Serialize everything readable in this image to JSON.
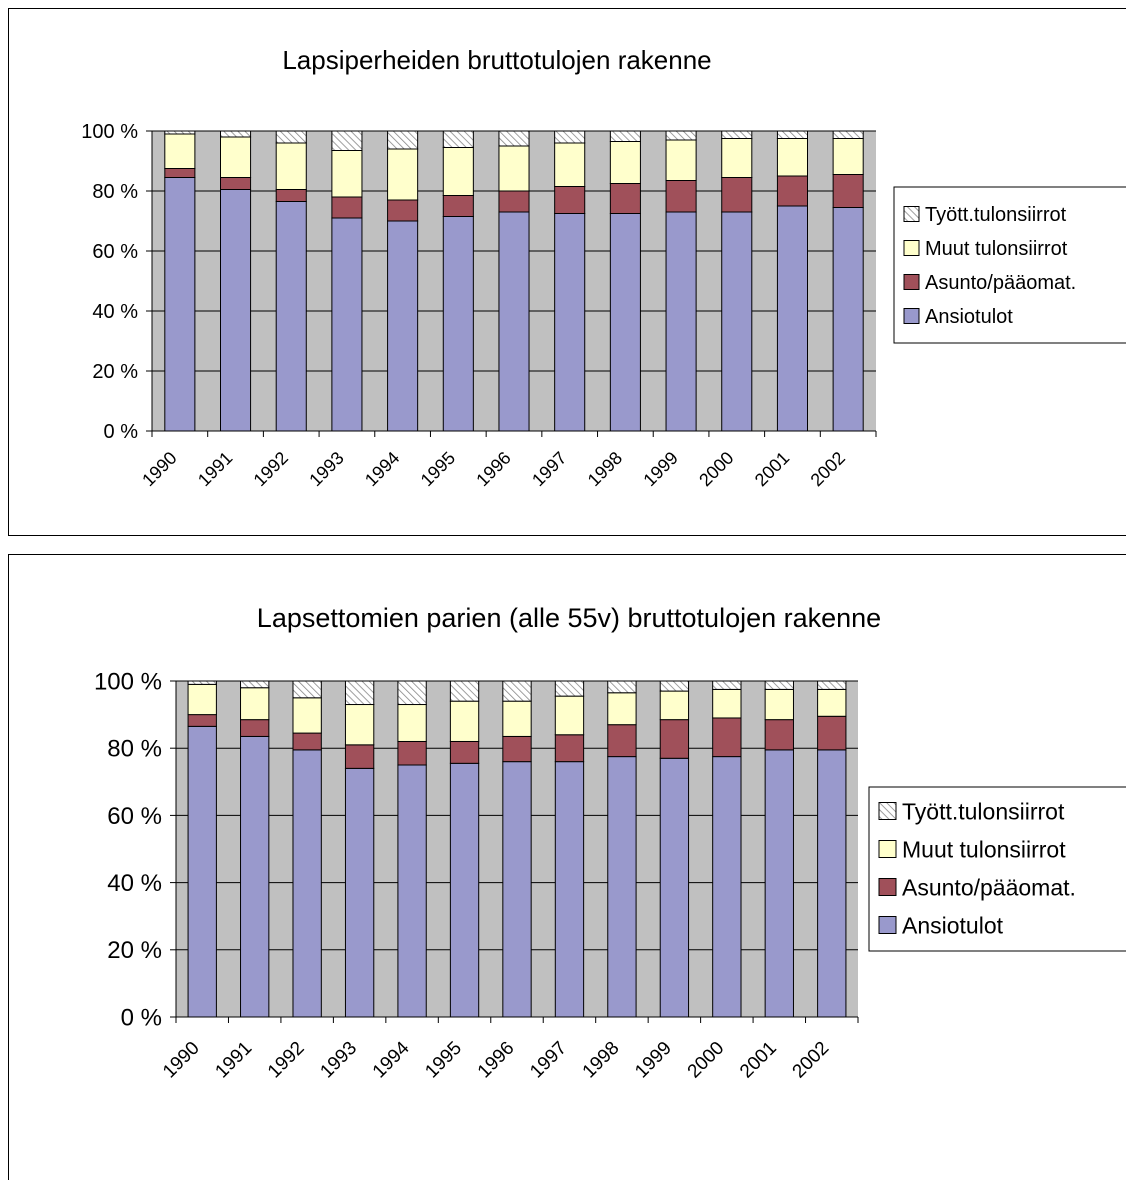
{
  "chart_data": [
    {
      "type": "bar",
      "stacked": "percent",
      "title": "Lapsiperheiden bruttotulojen rakenne",
      "categories": [
        "1990",
        "1991",
        "1992",
        "1993",
        "1994",
        "1995",
        "1996",
        "1997",
        "1998",
        "1999",
        "2000",
        "2001",
        "2002"
      ],
      "ylim": [
        0,
        100
      ],
      "yticks": [
        "0 %",
        "20 %",
        "40 %",
        "60 %",
        "80 %",
        "100 %"
      ],
      "legend_position": "right",
      "series": [
        {
          "name": "Ansiotulot",
          "color": "#9999cc",
          "values": [
            84.5,
            80.5,
            76.5,
            71,
            70,
            71.5,
            73,
            72.5,
            72.5,
            73,
            73,
            75,
            74.5
          ]
        },
        {
          "name": "Asunto/pääomat.",
          "color": "#a0505a",
          "values": [
            3,
            4,
            4,
            7,
            7,
            7,
            7,
            9,
            10,
            10.5,
            11.5,
            10,
            11
          ]
        },
        {
          "name": "Muut tulonsiirrot",
          "color": "#ffffcc",
          "values": [
            11.5,
            13.5,
            15.5,
            15.5,
            17,
            16,
            15,
            14.5,
            14,
            13.5,
            13,
            12.5,
            12
          ]
        },
        {
          "name": "Tyött.tulonsiirrot",
          "color": "#d4d4d4",
          "pattern": true,
          "values": [
            1,
            2,
            4,
            6.5,
            6,
            5.5,
            5,
            4,
            3.5,
            3,
            2.5,
            2.5,
            2.5
          ]
        }
      ]
    },
    {
      "type": "bar",
      "stacked": "percent",
      "title": "Lapsettomien parien (alle 55v) bruttotulojen rakenne",
      "categories": [
        "1990",
        "1991",
        "1992",
        "1993",
        "1994",
        "1995",
        "1996",
        "1997",
        "1998",
        "1999",
        "2000",
        "2001",
        "2002"
      ],
      "ylim": [
        0,
        100
      ],
      "yticks": [
        "0 %",
        "20 %",
        "40 %",
        "60 %",
        "80 %",
        "100 %"
      ],
      "legend_position": "right",
      "series": [
        {
          "name": "Ansiotulot",
          "color": "#9999cc",
          "values": [
            86.5,
            83.5,
            79.5,
            74,
            75,
            75.5,
            76,
            76,
            77.5,
            77,
            77.5,
            79.5,
            79.5
          ]
        },
        {
          "name": "Asunto/pääomat.",
          "color": "#a0505a",
          "values": [
            3.5,
            5,
            5,
            7,
            7,
            6.5,
            7.5,
            8,
            9.5,
            11.5,
            11.5,
            9,
            10
          ]
        },
        {
          "name": "Muut tulonsiirrot",
          "color": "#ffffcc",
          "values": [
            9,
            9.5,
            10.5,
            12,
            11,
            12,
            10.5,
            11.5,
            9.5,
            8.5,
            8.5,
            9,
            8
          ]
        },
        {
          "name": "Tyött.tulonsiirrot",
          "color": "#d4d4d4",
          "pattern": true,
          "values": [
            1,
            2,
            5,
            7,
            7,
            6,
            6,
            4.5,
            3.5,
            3,
            2.5,
            2.5,
            2.5
          ]
        }
      ]
    }
  ]
}
